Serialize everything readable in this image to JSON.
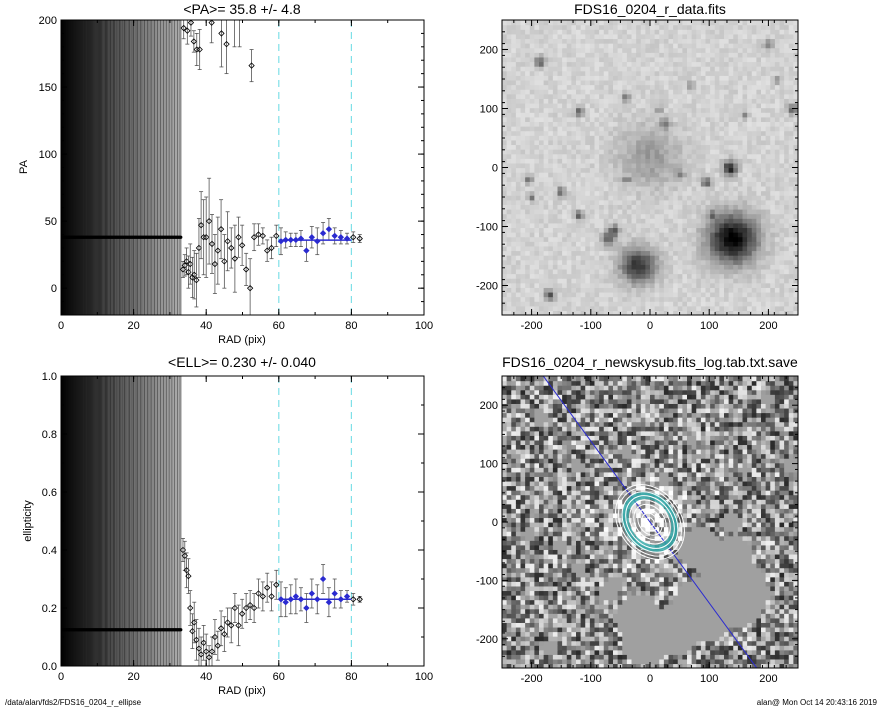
{
  "footer": {
    "left": "/data/alan/fds2/FDS16_0204_r_ellipse",
    "right": "alan@  Mon Oct 14 20:43:16 2019"
  },
  "colors": {
    "fit_line": "#2b2bd0",
    "guide_dashed": "#7fe0e8",
    "errorbar": "#555555",
    "marker": "#000000",
    "ring_teal": "#2fa8a8"
  },
  "chart_data": [
    {
      "id": "pa",
      "type": "scatter",
      "title": "<PA>=  35.8 +/-   4.8",
      "xlabel": "RAD (pix)",
      "ylabel": "PA",
      "xlim": [
        0,
        100
      ],
      "ylim": [
        -20,
        200
      ],
      "xticks": [
        "0",
        "20",
        "40",
        "60",
        "80",
        "100"
      ],
      "yticks": [
        "0",
        "50",
        "100",
        "150",
        "200"
      ],
      "vlines": [
        60,
        80
      ],
      "fit": {
        "x": [
          60,
          80
        ],
        "y": 35.8
      },
      "dense_region": [
        0,
        33
      ],
      "dense_value": 38,
      "points": [
        [
          33.6,
          14,
          6
        ],
        [
          34.1,
          17,
          8
        ],
        [
          34.6,
          20,
          10
        ],
        [
          35.1,
          12,
          12
        ],
        [
          35.6,
          18,
          15
        ],
        [
          36.2,
          8,
          15
        ],
        [
          36.7,
          10,
          18
        ],
        [
          37.3,
          6,
          20
        ],
        [
          38.0,
          30,
          22
        ],
        [
          38.6,
          47,
          25
        ],
        [
          39.3,
          38,
          28
        ],
        [
          40.0,
          38,
          30
        ],
        [
          40.8,
          50,
          32
        ],
        [
          41.6,
          33,
          22
        ],
        [
          42.4,
          18,
          22
        ],
        [
          43.2,
          28,
          25
        ],
        [
          44.1,
          44,
          22
        ],
        [
          45.0,
          20,
          20
        ],
        [
          45.9,
          35,
          22
        ],
        [
          46.9,
          30,
          15
        ],
        [
          47.9,
          22,
          25
        ],
        [
          48.9,
          38,
          15
        ],
        [
          49.9,
          32,
          15
        ],
        [
          51.0,
          14,
          12
        ],
        [
          52.1,
          0,
          22
        ],
        [
          53.2,
          38,
          10
        ],
        [
          54.4,
          40,
          8
        ],
        [
          55.6,
          39,
          6
        ],
        [
          56.8,
          28,
          8
        ],
        [
          58.0,
          30,
          8
        ],
        [
          59.3,
          39,
          8
        ],
        [
          60.6,
          35,
          10
        ],
        [
          61.9,
          36,
          6
        ],
        [
          63.3,
          36,
          5
        ],
        [
          64.7,
          36,
          5
        ],
        [
          66.1,
          37,
          6
        ],
        [
          67.6,
          28,
          8
        ],
        [
          69.1,
          38,
          8
        ],
        [
          70.6,
          35,
          10
        ],
        [
          72.2,
          41,
          8
        ],
        [
          73.8,
          44,
          8
        ],
        [
          75.4,
          39,
          6
        ],
        [
          77.1,
          38,
          5
        ],
        [
          78.8,
          37,
          4
        ],
        [
          80.5,
          38,
          4
        ],
        [
          82.3,
          37,
          3
        ],
        [
          33.8,
          194,
          8
        ],
        [
          34.8,
          192,
          10
        ],
        [
          35.8,
          198,
          10
        ],
        [
          36.6,
          184,
          8
        ],
        [
          37.4,
          178,
          12
        ],
        [
          38.2,
          178,
          15
        ],
        [
          41.5,
          198,
          15
        ],
        [
          44.2,
          190,
          25
        ],
        [
          45.6,
          182,
          22
        ],
        [
          47.8,
          202,
          22
        ],
        [
          49.2,
          205,
          25
        ],
        [
          52.5,
          166,
          12
        ]
      ]
    },
    {
      "id": "ell",
      "type": "scatter",
      "title": "<ELL>= 0.230 +/-  0.040",
      "xlabel": "RAD (pix)",
      "ylabel": "ellipticity",
      "xlim": [
        0,
        100
      ],
      "ylim": [
        0,
        1
      ],
      "xticks": [
        "0",
        "20",
        "40",
        "60",
        "80",
        "100"
      ],
      "yticks": [
        "0.0",
        "0.2",
        "0.4",
        "0.6",
        "0.8",
        "1.0"
      ],
      "vlines": [
        60,
        80
      ],
      "fit": {
        "x": [
          60,
          80
        ],
        "y": 0.23
      },
      "dense_region": [
        0,
        33
      ],
      "dense_value": 0.125,
      "points": [
        [
          33.6,
          0.4,
          0.04
        ],
        [
          34.1,
          0.38,
          0.05
        ],
        [
          34.6,
          0.33,
          0.06
        ],
        [
          35.1,
          0.31,
          0.06
        ],
        [
          35.6,
          0.2,
          0.06
        ],
        [
          36.2,
          0.12,
          0.06
        ],
        [
          36.7,
          0.15,
          0.07
        ],
        [
          37.3,
          0.09,
          0.07
        ],
        [
          38.0,
          0.06,
          0.07
        ],
        [
          38.6,
          0.04,
          0.06
        ],
        [
          39.3,
          0.08,
          0.06
        ],
        [
          40.0,
          0.05,
          0.06
        ],
        [
          40.8,
          0.03,
          0.04
        ],
        [
          41.6,
          0.05,
          0.05
        ],
        [
          42.4,
          0.1,
          0.06
        ],
        [
          43.2,
          0.07,
          0.05
        ],
        [
          44.1,
          0.13,
          0.06
        ],
        [
          45.0,
          0.11,
          0.06
        ],
        [
          45.9,
          0.15,
          0.05
        ],
        [
          46.9,
          0.14,
          0.06
        ],
        [
          47.9,
          0.2,
          0.05
        ],
        [
          48.9,
          0.14,
          0.07
        ],
        [
          49.9,
          0.18,
          0.05
        ],
        [
          51.0,
          0.2,
          0.05
        ],
        [
          52.1,
          0.21,
          0.05
        ],
        [
          53.2,
          0.2,
          0.05
        ],
        [
          54.4,
          0.25,
          0.05
        ],
        [
          55.6,
          0.24,
          0.05
        ],
        [
          56.8,
          0.27,
          0.05
        ],
        [
          58.0,
          0.24,
          0.05
        ],
        [
          59.3,
          0.28,
          0.05
        ],
        [
          60.6,
          0.23,
          0.06
        ],
        [
          61.9,
          0.22,
          0.05
        ],
        [
          63.3,
          0.23,
          0.05
        ],
        [
          64.7,
          0.24,
          0.06
        ],
        [
          66.1,
          0.23,
          0.04
        ],
        [
          67.6,
          0.2,
          0.05
        ],
        [
          69.1,
          0.25,
          0.05
        ],
        [
          70.6,
          0.23,
          0.05
        ],
        [
          72.2,
          0.3,
          0.05
        ],
        [
          73.8,
          0.22,
          0.05
        ],
        [
          75.4,
          0.25,
          0.05
        ],
        [
          77.1,
          0.23,
          0.03
        ],
        [
          78.8,
          0.24,
          0.02
        ],
        [
          80.5,
          0.23,
          0.02
        ],
        [
          82.3,
          0.23,
          0.01
        ]
      ]
    },
    {
      "id": "img1",
      "type": "heatmap",
      "title": "FDS16_0204_r_data.fits",
      "xlim": [
        -250,
        250
      ],
      "ylim": [
        -250,
        250
      ],
      "xticks": [
        "-200",
        "-100",
        "0",
        "100",
        "200"
      ],
      "yticks": [
        "-200",
        "-100",
        "0",
        "100",
        "200"
      ],
      "sources": [
        [
          0,
          20,
          70,
          0.25
        ],
        [
          140,
          -120,
          55,
          0.95
        ],
        [
          -20,
          -165,
          40,
          0.7
        ],
        [
          135,
          0,
          16,
          0.8
        ],
        [
          -70,
          -120,
          16,
          0.5
        ],
        [
          95,
          -25,
          10,
          0.6
        ],
        [
          -150,
          -40,
          10,
          0.5
        ],
        [
          -120,
          -80,
          10,
          0.5
        ],
        [
          -120,
          95,
          10,
          0.5
        ],
        [
          50,
          -10,
          10,
          0.35
        ],
        [
          -60,
          -105,
          12,
          0.5
        ],
        [
          25,
          75,
          10,
          0.4
        ],
        [
          105,
          -80,
          10,
          0.4
        ],
        [
          -205,
          -20,
          10,
          0.4
        ],
        [
          240,
          100,
          12,
          0.5
        ],
        [
          200,
          210,
          10,
          0.4
        ],
        [
          -40,
          120,
          10,
          0.4
        ],
        [
          -170,
          -215,
          12,
          0.55
        ],
        [
          15,
          100,
          8,
          0.3
        ],
        [
          -185,
          180,
          12,
          0.5
        ],
        [
          -40,
          -20,
          8,
          0.4
        ],
        [
          -200,
          -50,
          8,
          0.4
        ],
        [
          70,
          140,
          8,
          0.35
        ],
        [
          160,
          90,
          8,
          0.35
        ],
        [
          215,
          150,
          8,
          0.35
        ]
      ]
    },
    {
      "id": "img2",
      "type": "heatmap",
      "title": "FDS16_0204_r_newskysub.fits_log.tab.txt.save",
      "xlim": [
        -250,
        250
      ],
      "ylim": [
        -250,
        250
      ],
      "xticks": [
        "-200",
        "-100",
        "0",
        "100",
        "200"
      ],
      "yticks": [
        "-200",
        "-100",
        "0",
        "100",
        "200"
      ],
      "ellipse_center": [
        0,
        0
      ],
      "ellipse_pa": 35.8,
      "ellipse_ell": 0.23,
      "ellipse_radii": [
        8,
        16,
        24,
        32,
        40,
        48,
        55,
        62,
        68
      ],
      "masks": [
        [
          140,
          -120,
          60
        ],
        [
          140,
          -60,
          35
        ],
        [
          85,
          -45,
          38
        ],
        [
          90,
          -150,
          55
        ],
        [
          40,
          -185,
          45
        ],
        [
          -20,
          -165,
          40
        ],
        [
          -10,
          -205,
          40
        ],
        [
          135,
          0,
          18
        ],
        [
          -70,
          -120,
          16
        ],
        [
          -150,
          -40,
          13
        ],
        [
          -120,
          -80,
          12
        ],
        [
          -120,
          95,
          12
        ],
        [
          -40,
          120,
          12
        ],
        [
          25,
          75,
          12
        ],
        [
          -185,
          180,
          14
        ],
        [
          240,
          100,
          14
        ],
        [
          200,
          210,
          12
        ],
        [
          -170,
          -215,
          14
        ],
        [
          -205,
          -20,
          12
        ],
        [
          -60,
          -105,
          14
        ],
        [
          105,
          -80,
          14
        ],
        [
          160,
          90,
          10
        ],
        [
          70,
          140,
          10
        ]
      ]
    }
  ]
}
